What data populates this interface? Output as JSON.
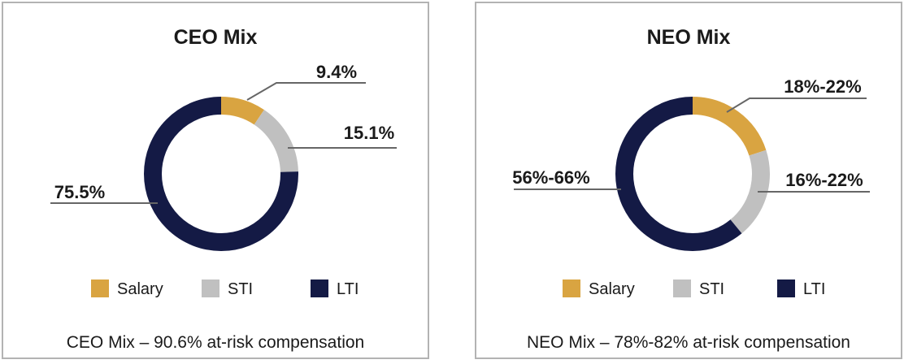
{
  "colors": {
    "salary": "#d9a441",
    "sti": "#c0c0c0",
    "lti": "#141a45",
    "leader": "#666666"
  },
  "chart_data": [
    {
      "type": "pie",
      "variant": "donut",
      "title": "CEO Mix",
      "categories": [
        "Salary",
        "STI",
        "LTI"
      ],
      "values": [
        9.4,
        15.1,
        75.5
      ],
      "labels": [
        "9.4%",
        "15.1%",
        "75.5%"
      ],
      "legend": [
        "Salary",
        "STI",
        "LTI"
      ],
      "legend_position": "bottom",
      "caption": "CEO Mix – 90.6% at-risk compensation"
    },
    {
      "type": "pie",
      "variant": "donut",
      "title": "NEO Mix",
      "categories": [
        "Salary",
        "STI",
        "LTI"
      ],
      "values": [
        20,
        19,
        61
      ],
      "labels": [
        "18%-22%",
        "16%-22%",
        "56%-66%"
      ],
      "legend": [
        "Salary",
        "STI",
        "LTI"
      ],
      "legend_position": "bottom",
      "caption": "NEO Mix – 78%-82% at-risk compensation"
    }
  ]
}
